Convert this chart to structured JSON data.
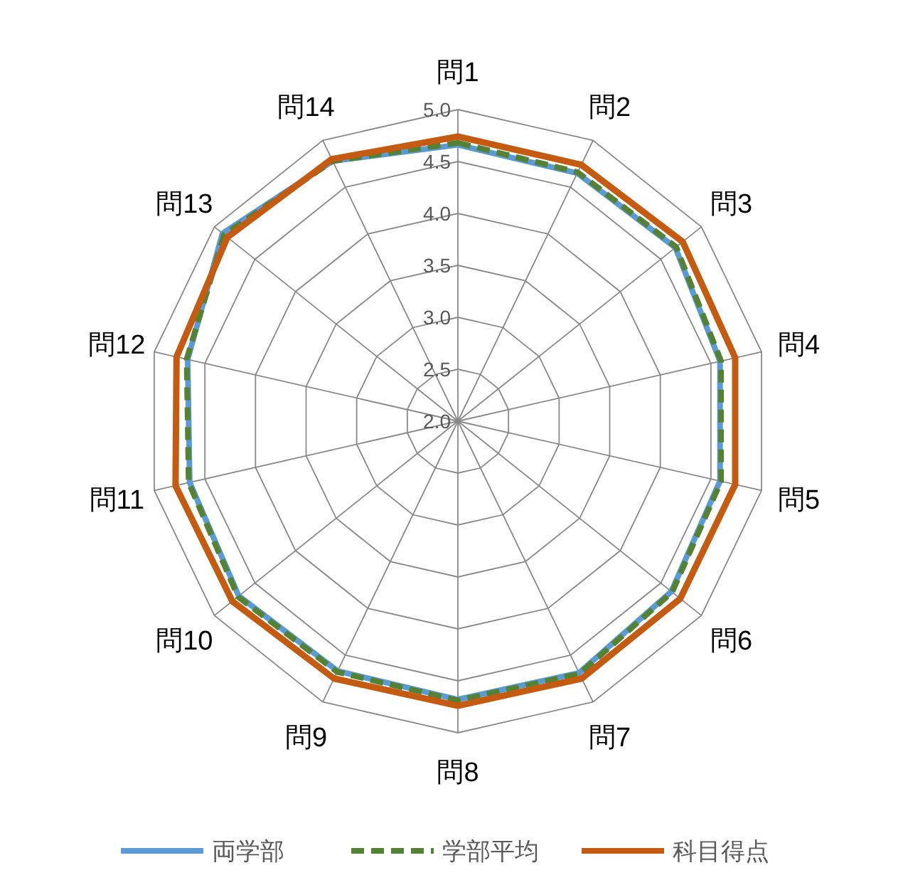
{
  "chart_data": {
    "type": "radar",
    "categories": [
      "問1",
      "問2",
      "問3",
      "問4",
      "問5",
      "問6",
      "問7",
      "問8",
      "問9",
      "問10",
      "問11",
      "問12",
      "問13",
      "問14"
    ],
    "series": [
      {
        "name": "両学部",
        "color": "#5b9bd5",
        "line_style": "solid",
        "values": [
          4.66,
          4.65,
          4.68,
          4.59,
          4.59,
          4.63,
          4.69,
          4.68,
          4.67,
          4.7,
          4.65,
          4.67,
          4.9,
          4.78
        ]
      },
      {
        "name": "学部平均",
        "color": "#548235",
        "line_style": "dashed",
        "values": [
          4.68,
          4.66,
          4.69,
          4.6,
          4.6,
          4.64,
          4.7,
          4.69,
          4.68,
          4.71,
          4.66,
          4.68,
          4.88,
          4.78
        ]
      },
      {
        "name": "科目得点",
        "color": "#c55a11",
        "line_style": "solid",
        "values": [
          4.74,
          4.74,
          4.77,
          4.74,
          4.74,
          4.74,
          4.75,
          4.74,
          4.75,
          4.78,
          4.79,
          4.78,
          4.84,
          4.8
        ]
      }
    ],
    "ylim": [
      2.0,
      5.0
    ],
    "yticks": [
      {
        "value": 2.0,
        "label": "2.0"
      },
      {
        "value": 2.5,
        "label": "2.5"
      },
      {
        "value": 3.0,
        "label": "3.0"
      },
      {
        "value": 3.5,
        "label": "3.5"
      },
      {
        "value": 4.0,
        "label": "4.0"
      },
      {
        "value": 4.5,
        "label": "4.5"
      },
      {
        "value": 5.0,
        "label": "5.0"
      }
    ],
    "grid": true,
    "legend": "bottom"
  }
}
